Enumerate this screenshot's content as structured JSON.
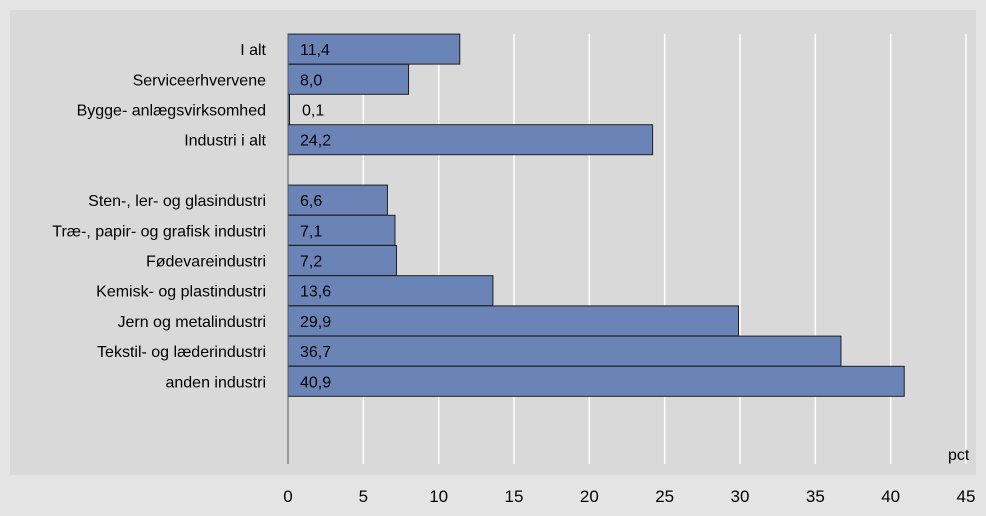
{
  "chart_data": {
    "type": "bar",
    "orientation": "horizontal",
    "categories": [
      "I alt",
      "Serviceerhvervene",
      "Bygge- anlægsvirksomhed",
      "Industri i alt",
      "",
      "Sten-, ler- og glasindustri",
      "Træ-, papir- og grafisk industri",
      "Fødevareindustri",
      "Kemisk- og plastindustri",
      "Jern og metalindustri",
      "Tekstil- og læderindustri",
      "anden industri"
    ],
    "values": [
      11.4,
      8.0,
      0.1,
      24.2,
      null,
      6.6,
      7.1,
      7.2,
      13.6,
      29.9,
      36.7,
      40.9
    ],
    "data_labels": [
      "11,4",
      "8,0",
      "0,1",
      "24,2",
      "",
      "6,6",
      "7,1",
      "7,2",
      "13,6",
      "29,9",
      "36,7",
      "40,9"
    ],
    "x_ticks": [
      "0",
      "5",
      "10",
      "15",
      "20",
      "25",
      "30",
      "35",
      "40",
      "45"
    ],
    "xlim": [
      0,
      45
    ],
    "unit_label": "pct",
    "grid": true,
    "colors": {
      "page_background": "#e4e4e4",
      "plot_background": "#d9d9d9",
      "bar_fill": "#6b84b8",
      "bar_stroke": "#1f1f1f",
      "gridline": "#ffffff",
      "text": "#000000"
    }
  }
}
